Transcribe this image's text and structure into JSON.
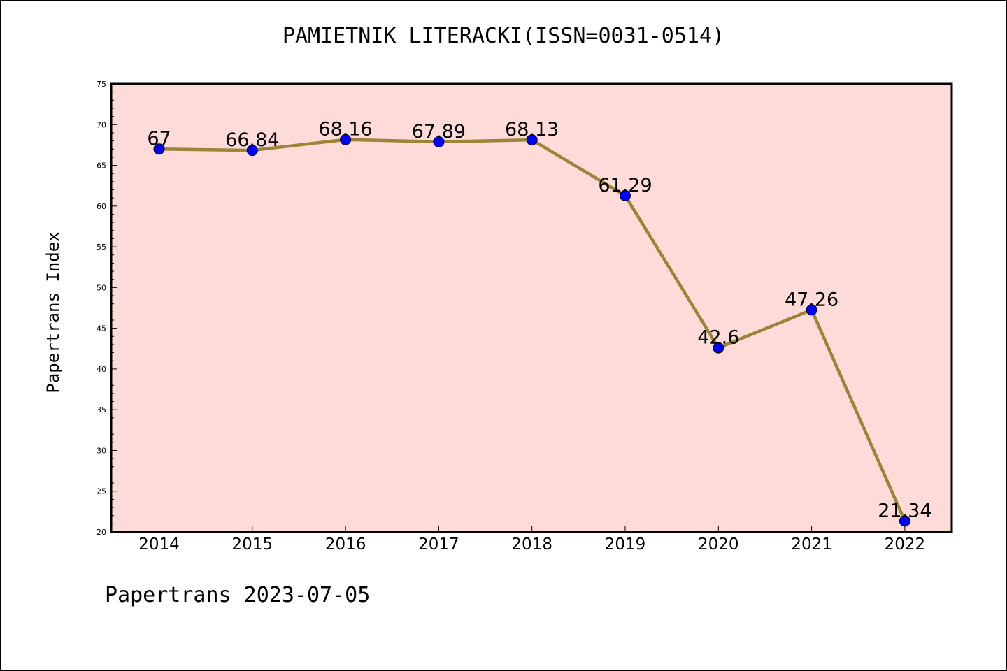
{
  "footer": "Papertrans 2023-07-05",
  "chart_data": {
    "type": "line",
    "title": "PAMIETNIK LITERACKI(ISSN=0031-0514)",
    "xlabel": "",
    "ylabel": "Papertrans Index",
    "categories": [
      "2014",
      "2015",
      "2016",
      "2017",
      "2018",
      "2019",
      "2020",
      "2021",
      "2022"
    ],
    "series": [
      {
        "values": [
          67,
          66.84,
          68.16,
          67.89,
          68.13,
          61.29,
          42.6,
          47.26,
          21.34
        ],
        "labels": [
          "67",
          "66.84",
          "68.16",
          "67.89",
          "68.13",
          "61.29",
          "42.6",
          "47.26",
          "21.34"
        ]
      }
    ],
    "ylim": [
      20,
      75
    ],
    "yticks": [
      "20",
      "25",
      "30",
      "35",
      "40",
      "45",
      "50",
      "55",
      "60",
      "65",
      "70",
      "75"
    ],
    "grid": false,
    "legend": "none",
    "colors": {
      "plot_background": "#FDDBD8",
      "line": "#9C8439",
      "marker": "#0000FF",
      "axis": "#000000"
    }
  }
}
